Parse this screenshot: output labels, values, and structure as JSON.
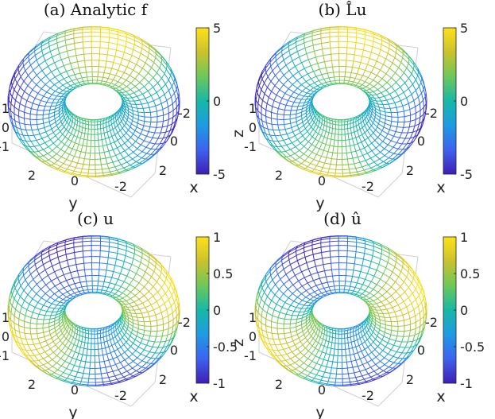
{
  "colors": {
    "viridis_like": [
      "#3e1fb5",
      "#3d62f0",
      "#1e9be3",
      "#17b8a7",
      "#6dc85a",
      "#c9c22d",
      "#ffe11a"
    ]
  },
  "chart_data": [
    {
      "type": "surface",
      "title": "(a) Analytic f",
      "xlabel": "x",
      "ylabel": "y",
      "zlabel": "z",
      "x_ticks": [
        "-2",
        "0",
        "2"
      ],
      "y_ticks": [
        "2",
        "0",
        "-2"
      ],
      "z_ticks": [
        "1",
        "0",
        "-1"
      ],
      "colorbar": {
        "clim": [
          -5,
          5
        ],
        "ticks": [
          "5",
          "0",
          "-5"
        ]
      },
      "field": "f"
    },
    {
      "type": "surface",
      "title": "(b) L̂u",
      "xlabel": "x",
      "ylabel": "y",
      "zlabel": "z",
      "x_ticks": [
        "-2",
        "0",
        "2"
      ],
      "y_ticks": [
        "2",
        "0",
        "-2"
      ],
      "z_ticks": [
        "1",
        "0",
        "-1"
      ],
      "colorbar": {
        "clim": [
          -5,
          5
        ],
        "ticks": [
          "5",
          "0",
          "-5"
        ]
      },
      "field": "f"
    },
    {
      "type": "surface",
      "title": "(c) u",
      "xlabel": "x",
      "ylabel": "y",
      "zlabel": "z",
      "x_ticks": [
        "-2",
        "0",
        "2"
      ],
      "y_ticks": [
        "2",
        "0",
        "-2"
      ],
      "z_ticks": [
        "1",
        "0",
        "-1"
      ],
      "colorbar": {
        "clim": [
          -1,
          1
        ],
        "ticks": [
          "1",
          "0.5",
          "0",
          "-0.5",
          "-1"
        ]
      },
      "field": "u"
    },
    {
      "type": "surface",
      "title": "(d) û",
      "xlabel": "x",
      "ylabel": "y",
      "zlabel": "z",
      "x_ticks": [
        "-2",
        "0",
        "2"
      ],
      "y_ticks": [
        "2",
        "0",
        "-2"
      ],
      "z_ticks": [
        "1",
        "0",
        "-1"
      ],
      "colorbar": {
        "clim": [
          -1,
          1
        ],
        "ticks": [
          "1",
          "0.5",
          "0",
          "-0.5",
          "-1"
        ]
      },
      "field": "u"
    }
  ]
}
